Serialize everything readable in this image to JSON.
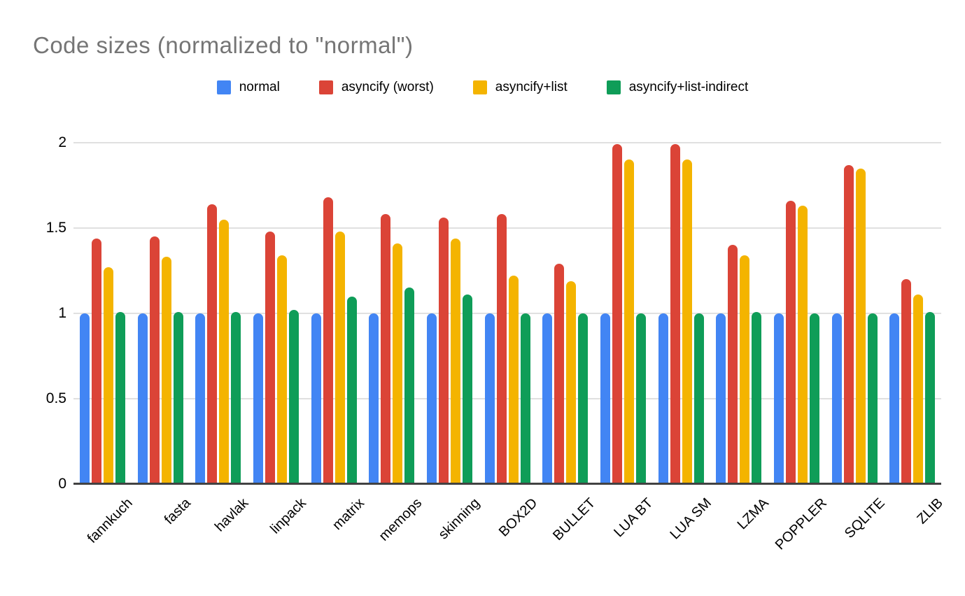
{
  "chart_data": {
    "type": "bar",
    "title": "Code sizes (normalized to \"normal\")",
    "title_color": "#757575",
    "categories": [
      "fannkuch",
      "fasta",
      "havlak",
      "linpack",
      "matrix",
      "memops",
      "skinning",
      "BOX2D",
      "BULLET",
      "LUA BT",
      "LUA SM",
      "LZMA",
      "POPPLER",
      "SQLITE",
      "ZLIB"
    ],
    "series": [
      {
        "name": "normal",
        "color": "#4285F4",
        "values": [
          1.0,
          1.0,
          1.0,
          1.0,
          1.0,
          1.0,
          1.0,
          1.0,
          1.0,
          1.0,
          1.0,
          1.0,
          1.0,
          1.0,
          1.0
        ]
      },
      {
        "name": "asyncify (worst)",
        "color": "#DB4437",
        "values": [
          1.44,
          1.45,
          1.64,
          1.48,
          1.68,
          1.58,
          1.56,
          1.58,
          1.29,
          1.99,
          1.99,
          1.4,
          1.66,
          1.87,
          1.2
        ]
      },
      {
        "name": "asyncify+list",
        "color": "#F4B400",
        "values": [
          1.27,
          1.33,
          1.55,
          1.34,
          1.48,
          1.41,
          1.44,
          1.22,
          1.19,
          1.9,
          1.9,
          1.34,
          1.63,
          1.85,
          1.11
        ]
      },
      {
        "name": "asyncify+list-indirect",
        "color": "#0F9D58",
        "values": [
          1.01,
          1.01,
          1.01,
          1.02,
          1.1,
          1.15,
          1.11,
          1.0,
          1.0,
          1.0,
          1.0,
          1.01,
          1.0,
          1.0,
          1.01
        ]
      }
    ],
    "xlabel": "",
    "ylabel": "",
    "y_ticks": [
      0,
      0.5,
      1,
      1.5,
      2
    ],
    "y_tick_labels": [
      "0",
      "0.5",
      "1",
      "1.5",
      "2"
    ],
    "ylim": [
      0,
      2.05
    ],
    "grid": true,
    "gridline_color": "#e0e0e0",
    "baseline_color": "#424242",
    "legend_position": "top"
  }
}
